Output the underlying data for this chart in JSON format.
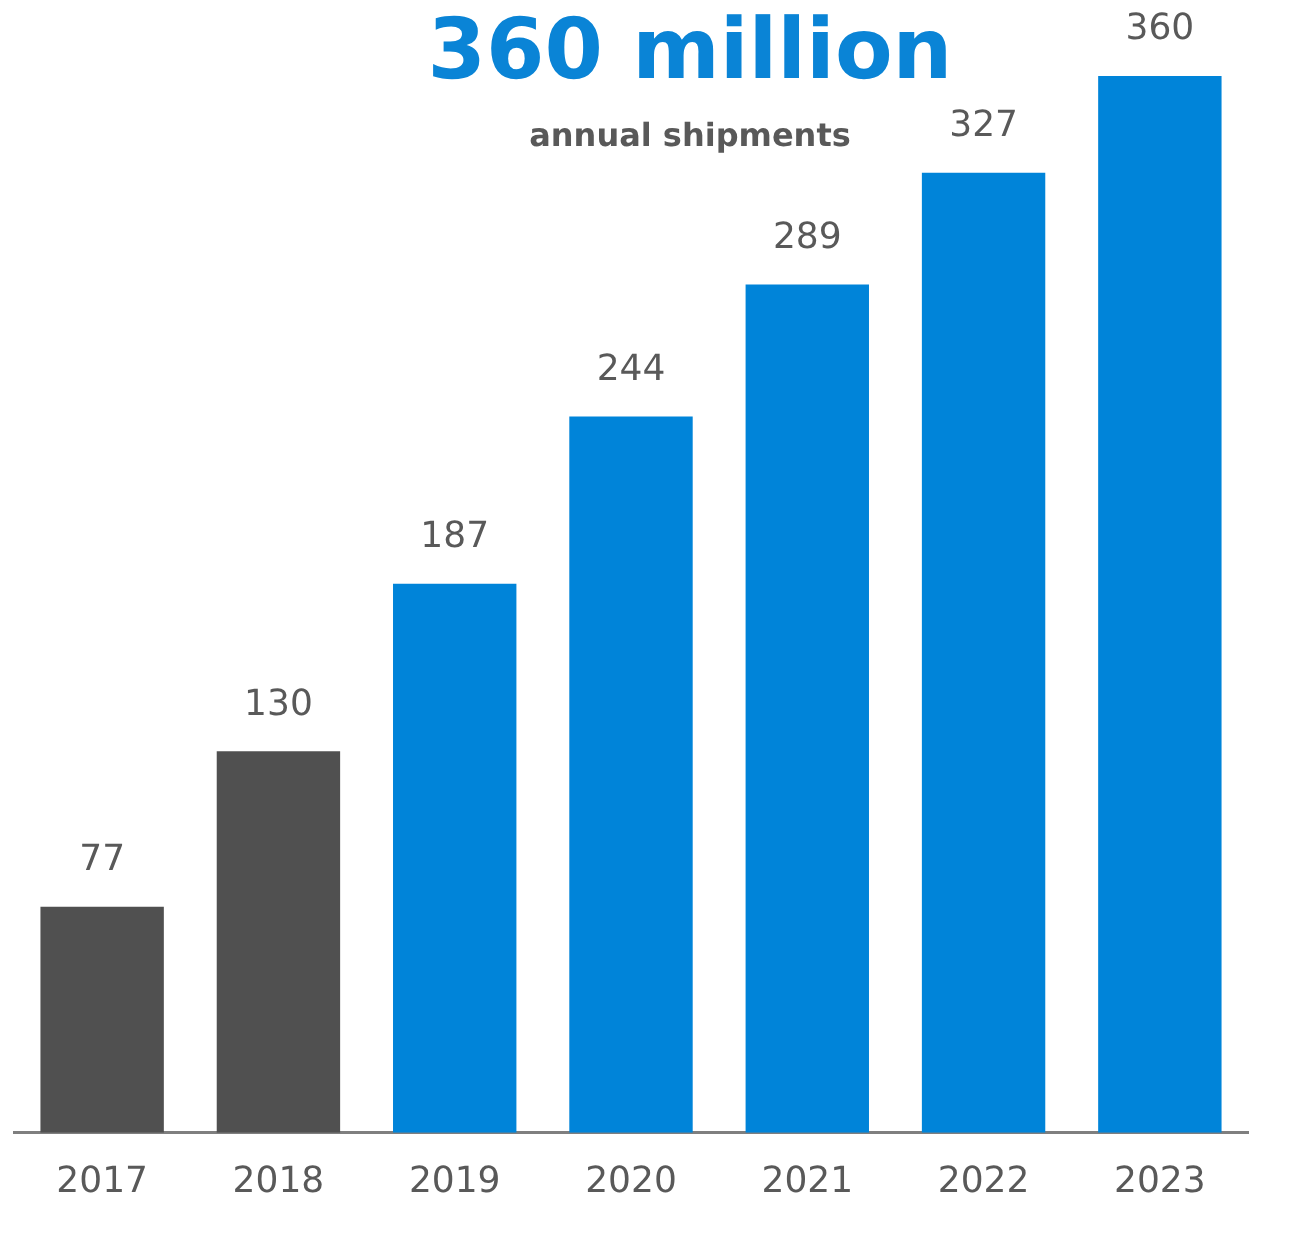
{
  "chart_data": {
    "type": "bar",
    "title": "360 million",
    "subtitle": "annual shipments",
    "categories": [
      "2017",
      "2018",
      "2019",
      "2020",
      "2021",
      "2022",
      "2023"
    ],
    "values": [
      77,
      130,
      187,
      244,
      289,
      327,
      360
    ],
    "colors": [
      "#505050",
      "#505050",
      "#0084d9",
      "#0084d9",
      "#0084d9",
      "#0084d9",
      "#0084d9"
    ],
    "data_labels": true
  }
}
